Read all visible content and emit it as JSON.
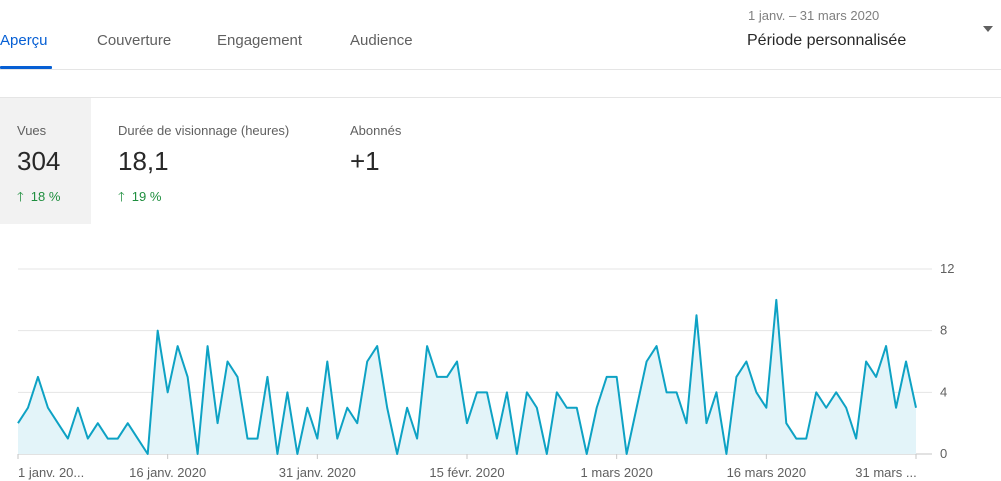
{
  "tabs": [
    {
      "label": "Aperçu",
      "active": true
    },
    {
      "label": "Couverture",
      "active": false
    },
    {
      "label": "Engagement",
      "active": false
    },
    {
      "label": "Audience",
      "active": false
    }
  ],
  "period": {
    "dates": "1 janv. – 31 mars 2020",
    "label": "Période personnalisée"
  },
  "metrics": [
    {
      "label": "Vues",
      "value": "304",
      "change": "18 %",
      "selected": true
    },
    {
      "label": "Durée de visionnage (heures)",
      "value": "18,1",
      "change": "19 %",
      "selected": false
    },
    {
      "label": "Abonnés",
      "value": "+1",
      "change": "",
      "selected": false
    }
  ],
  "colors": {
    "accent": "#065fd4",
    "line": "#0ea2c4",
    "area": "#e3f4f9",
    "positive": "#1e8e3e"
  },
  "chart_data": {
    "type": "area",
    "ylim": [
      0,
      12
    ],
    "y_ticks": [
      "0",
      "4",
      "8",
      "12"
    ],
    "x_ticks": [
      {
        "index": 0,
        "label": "1 janv. 20..."
      },
      {
        "index": 15,
        "label": "16 janv. 2020"
      },
      {
        "index": 30,
        "label": "31 janv. 2020"
      },
      {
        "index": 45,
        "label": "15 févr. 2020"
      },
      {
        "index": 60,
        "label": "1 mars 2020"
      },
      {
        "index": 75,
        "label": "16 mars 2020"
      },
      {
        "index": 90,
        "label": "31 mars ..."
      }
    ],
    "series": [
      {
        "values": [
          2,
          3,
          5,
          3,
          2,
          1,
          3,
          1,
          2,
          1,
          1,
          2,
          1,
          0,
          8,
          4,
          7,
          5,
          0,
          7,
          2,
          6,
          5,
          1,
          1,
          5,
          0,
          4,
          0,
          3,
          1,
          6,
          1,
          3,
          2,
          6,
          7,
          3,
          0,
          3,
          1,
          7,
          5,
          5,
          6,
          2,
          4,
          4,
          1,
          4,
          0,
          4,
          3,
          0,
          4,
          3,
          3,
          0,
          3,
          5,
          5,
          0,
          3,
          6,
          7,
          4,
          4,
          2,
          9,
          2,
          4,
          0,
          5,
          6,
          4,
          3,
          10,
          2,
          1,
          1,
          4,
          3,
          4,
          3,
          1,
          6,
          5,
          7,
          3,
          6,
          3
        ]
      }
    ],
    "grid": true
  }
}
